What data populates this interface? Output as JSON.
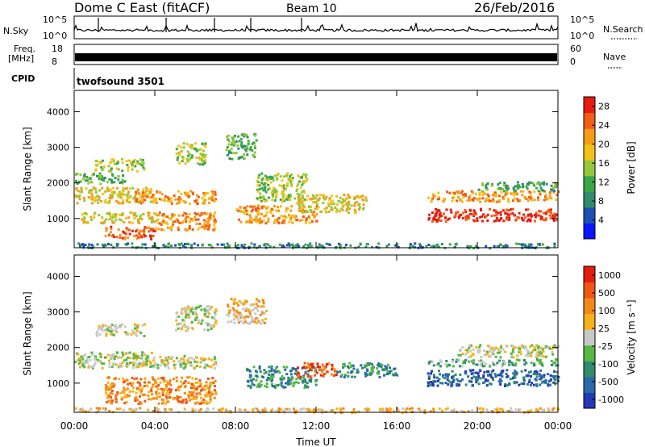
{
  "header": {
    "station": "Dome C East (fitACF)",
    "beam": "Beam 10",
    "date": "26/Feb/2016"
  },
  "strips": {
    "nsky_label": "N.Sky",
    "nsearch_label": "N.Search",
    "nsky_ticks": [
      "10^5",
      "10^0"
    ],
    "freq_label_1": "Freq.",
    "freq_label_2": "[MHz]",
    "freq_ticks": [
      "18",
      "8"
    ],
    "nave_label": "Nave",
    "nave_ticks": [
      "60",
      "0"
    ],
    "cpid_label": "CPID",
    "cpid_value": "twofsound 3501"
  },
  "colors": {
    "power_scale": [
      "#0a14ff",
      "#1f4fb5",
      "#2f8c6e",
      "#3aa84a",
      "#95c93a",
      "#f2c21a",
      "#f79a18",
      "#f25d14",
      "#e51c10"
    ],
    "velocity_scale": [
      "#2438b8",
      "#2a6aa8",
      "#2f8c6e",
      "#55b840",
      "#c8c8c8",
      "#f7b21a",
      "#f28a18",
      "#f05614",
      "#e51c10"
    ]
  },
  "chart_data": [
    {
      "type": "heatmap",
      "name": "power-panel",
      "ylabel": "Slant Range [km]",
      "xlabel": "Time UT",
      "x_ticks": [
        "00:00",
        "04:00",
        "08:00",
        "12:00",
        "16:00",
        "20:00",
        "00:00"
      ],
      "x_range_hours": [
        0,
        24
      ],
      "y_ticks": [
        1000,
        2000,
        3000,
        4000
      ],
      "y_range": [
        180,
        4600
      ],
      "colorbar_label": "Power [dB]",
      "colorbar_ticks": [
        4,
        8,
        12,
        16,
        20,
        24,
        28
      ],
      "colorbar_range": [
        0,
        30
      ],
      "regions": [
        {
          "t0": 0.0,
          "t1": 4.0,
          "r0": 1450,
          "r1": 1900,
          "v": 19
        },
        {
          "t0": 0.3,
          "t1": 4.2,
          "r0": 900,
          "r1": 1200,
          "v": 18
        },
        {
          "t0": 1.5,
          "t1": 4.0,
          "r0": 450,
          "r1": 800,
          "v": 25
        },
        {
          "t0": 1.0,
          "t1": 3.5,
          "r0": 2350,
          "r1": 2700,
          "v": 15
        },
        {
          "t0": 0.0,
          "t1": 2.5,
          "r0": 2000,
          "r1": 2300,
          "v": 12
        },
        {
          "t0": 3.0,
          "t1": 7.0,
          "r0": 1450,
          "r1": 1800,
          "v": 22
        },
        {
          "t0": 4.0,
          "t1": 7.0,
          "r0": 700,
          "r1": 1200,
          "v": 20
        },
        {
          "t0": 5.0,
          "t1": 6.5,
          "r0": 2550,
          "r1": 3150,
          "v": 14
        },
        {
          "t0": 7.5,
          "t1": 9.0,
          "r0": 2700,
          "r1": 3400,
          "v": 13
        },
        {
          "t0": 8.0,
          "t1": 12.0,
          "r0": 900,
          "r1": 1400,
          "v": 23
        },
        {
          "t0": 9.0,
          "t1": 11.5,
          "r0": 1500,
          "r1": 2300,
          "v": 16
        },
        {
          "t0": 11.0,
          "t1": 14.5,
          "r0": 1200,
          "r1": 1700,
          "v": 18
        },
        {
          "t0": 17.5,
          "t1": 24.0,
          "r0": 950,
          "r1": 1300,
          "v": 27
        },
        {
          "t0": 17.5,
          "t1": 24.0,
          "r0": 1500,
          "r1": 1800,
          "v": 20
        },
        {
          "t0": 20.0,
          "t1": 24.0,
          "r0": 1800,
          "r1": 2050,
          "v": 12
        },
        {
          "t0": 0.0,
          "t1": 24.0,
          "r0": 200,
          "r1": 330,
          "v": 9
        }
      ]
    },
    {
      "type": "heatmap",
      "name": "velocity-panel",
      "ylabel": "Slant Range [km]",
      "xlabel": "Time UT",
      "x_ticks": [
        "00:00",
        "04:00",
        "08:00",
        "12:00",
        "16:00",
        "20:00",
        "00:00"
      ],
      "x_range_hours": [
        0,
        24
      ],
      "y_ticks": [
        1000,
        2000,
        3000,
        4000
      ],
      "y_range": [
        180,
        4600
      ],
      "colorbar_label": "Velocity [m s⁻¹]",
      "colorbar_ticks": [
        "1000",
        "500",
        "100",
        "25",
        "-25",
        "-100",
        "-500",
        "-1000"
      ],
      "regions": [
        {
          "t0": 0.0,
          "t1": 4.0,
          "r0": 1450,
          "r1": 1900,
          "v": 4
        },
        {
          "t0": 1.0,
          "t1": 3.5,
          "r0": 2350,
          "r1": 2700,
          "v": 4
        },
        {
          "t0": 1.5,
          "t1": 7.0,
          "r0": 450,
          "r1": 1200,
          "v": 6
        },
        {
          "t0": 3.0,
          "t1": 7.0,
          "r0": 1450,
          "r1": 1800,
          "v": 4
        },
        {
          "t0": 5.0,
          "t1": 7.0,
          "r0": 2500,
          "r1": 3200,
          "v": 4
        },
        {
          "t0": 7.5,
          "t1": 9.5,
          "r0": 2700,
          "r1": 3400,
          "v": 5
        },
        {
          "t0": 8.5,
          "t1": 12.0,
          "r0": 900,
          "r1": 1500,
          "v": 2
        },
        {
          "t0": 11.0,
          "t1": 13.0,
          "r0": 1200,
          "r1": 1600,
          "v": 7
        },
        {
          "t0": 13.0,
          "t1": 16.0,
          "r0": 1200,
          "r1": 1600,
          "v": 2
        },
        {
          "t0": 17.5,
          "t1": 24.0,
          "r0": 950,
          "r1": 1400,
          "v": 1
        },
        {
          "t0": 17.5,
          "t1": 24.0,
          "r0": 1500,
          "r1": 1700,
          "v": 3
        },
        {
          "t0": 19.0,
          "t1": 24.0,
          "r0": 1750,
          "r1": 2100,
          "v": 4
        },
        {
          "t0": 0.0,
          "t1": 24.0,
          "r0": 200,
          "r1": 330,
          "v": 5
        }
      ]
    }
  ]
}
